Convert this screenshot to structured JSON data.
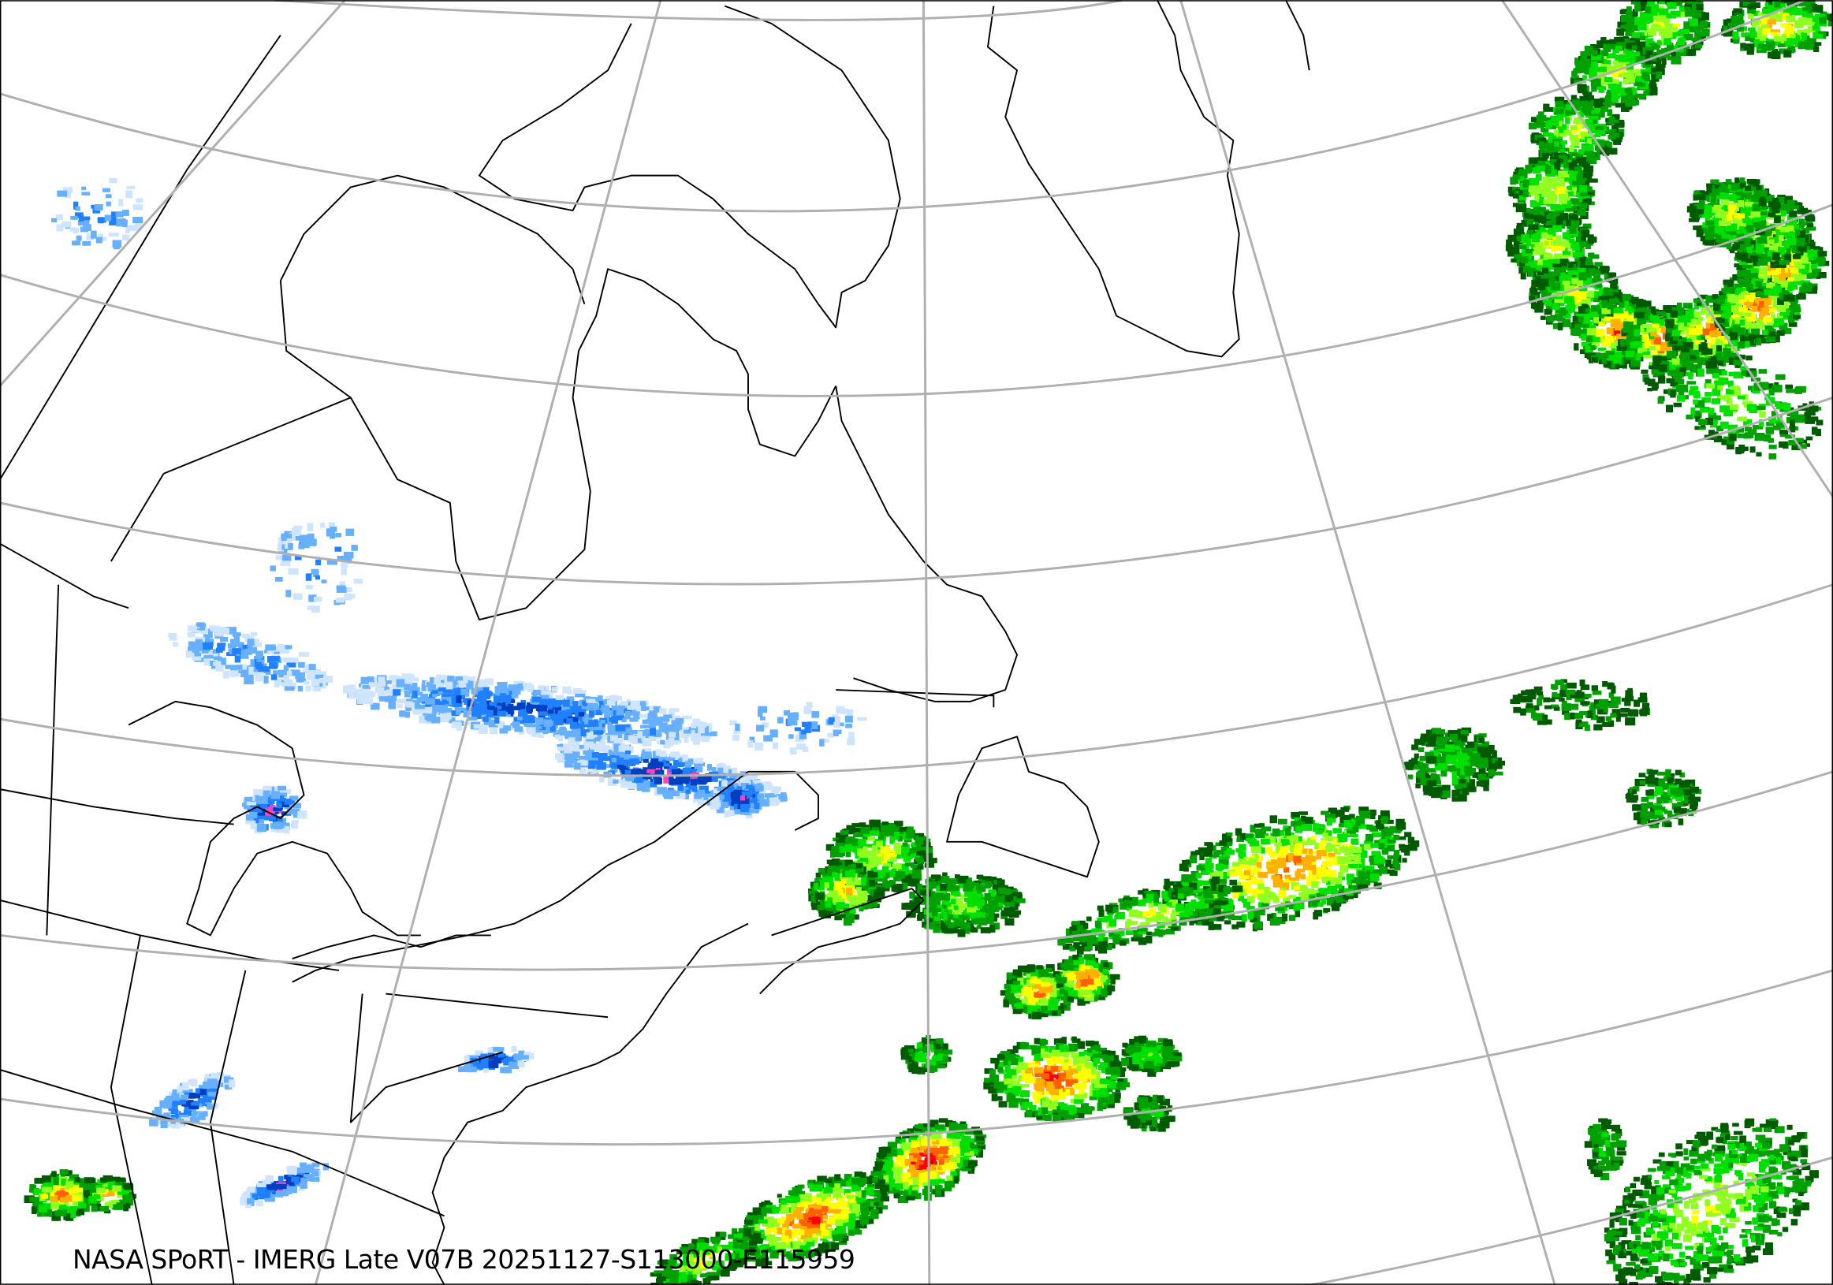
{
  "caption": "NASA SPoRT - IMERG Late V07B 20251127-S113000-E115959",
  "colors": {
    "graticule": "#b0b0b0",
    "coastline": "#000000",
    "rain_scale": [
      "#005a00",
      "#00a000",
      "#00e000",
      "#90ff20",
      "#ffff00",
      "#ffb000",
      "#ff6000",
      "#ff0000",
      "#a00000"
    ],
    "snow_scale": [
      "#cfe4ff",
      "#66b0ff",
      "#2080ff",
      "#0040c0",
      "#ff40c0"
    ]
  },
  "layers": {
    "graticule": "latitude-longitude grid lines",
    "coastlines": "coastlines and borders",
    "precipitation": "rain / snow"
  }
}
